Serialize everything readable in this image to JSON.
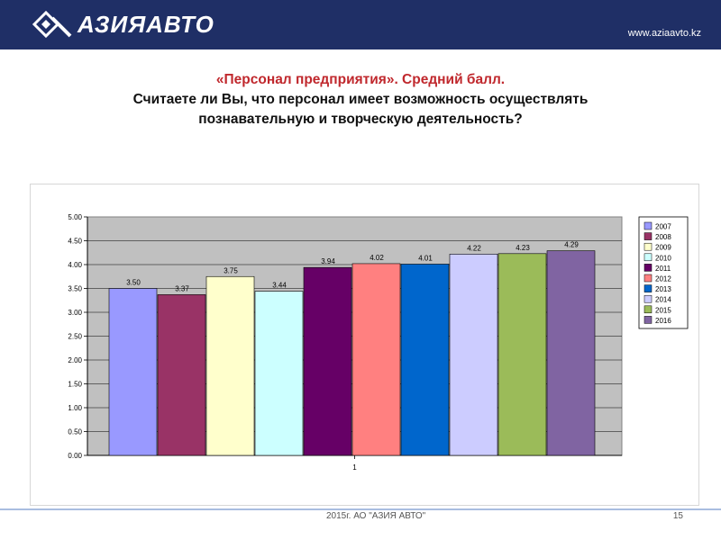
{
  "header": {
    "logo_text": "АЗИЯАВТО",
    "website": "www.aziaavto.kz"
  },
  "title": {
    "line1": "«Персонал предприятия». Средний балл.",
    "line2": "Считаете ли Вы, что персонал имеет возможность осуществлять познавательную и творческую деятельность?"
  },
  "footer": {
    "text": "2015г. АО \"АЗИЯ АВТО\"",
    "page_number": "15"
  },
  "colors": {
    "header_bg": "#1f2f66",
    "title_red": "#c0282d"
  },
  "chart_data": {
    "type": "bar",
    "categories": [
      "1"
    ],
    "series": [
      {
        "name": "2007",
        "value": 3.5,
        "label": "3.50",
        "color": "#9999ff"
      },
      {
        "name": "2008",
        "value": 3.37,
        "label": "3.37",
        "color": "#993366"
      },
      {
        "name": "2009",
        "value": 3.75,
        "label": "3.75",
        "color": "#ffffcc"
      },
      {
        "name": "2010",
        "value": 3.44,
        "label": "3.44",
        "color": "#ccffff"
      },
      {
        "name": "2011",
        "value": 3.94,
        "label": "3.94",
        "color": "#660066"
      },
      {
        "name": "2012",
        "value": 4.02,
        "label": "4.02",
        "color": "#ff8080"
      },
      {
        "name": "2013",
        "value": 4.01,
        "label": "4.01",
        "color": "#0066cc"
      },
      {
        "name": "2014",
        "value": 4.22,
        "label": "4.22",
        "color": "#ccccff"
      },
      {
        "name": "2015",
        "value": 4.23,
        "label": "4.23",
        "color": "#9bbb59"
      },
      {
        "name": "2016",
        "value": 4.29,
        "label": "4.29",
        "color": "#8064a2"
      }
    ],
    "ylim": [
      0,
      5
    ],
    "yticks": [
      "0.00",
      "0.50",
      "1.00",
      "1.50",
      "2.00",
      "2.50",
      "3.00",
      "3.50",
      "4.00",
      "4.50",
      "5.00"
    ],
    "grid": true,
    "plot_background": "#c0c0c0",
    "legend_position": "right"
  }
}
